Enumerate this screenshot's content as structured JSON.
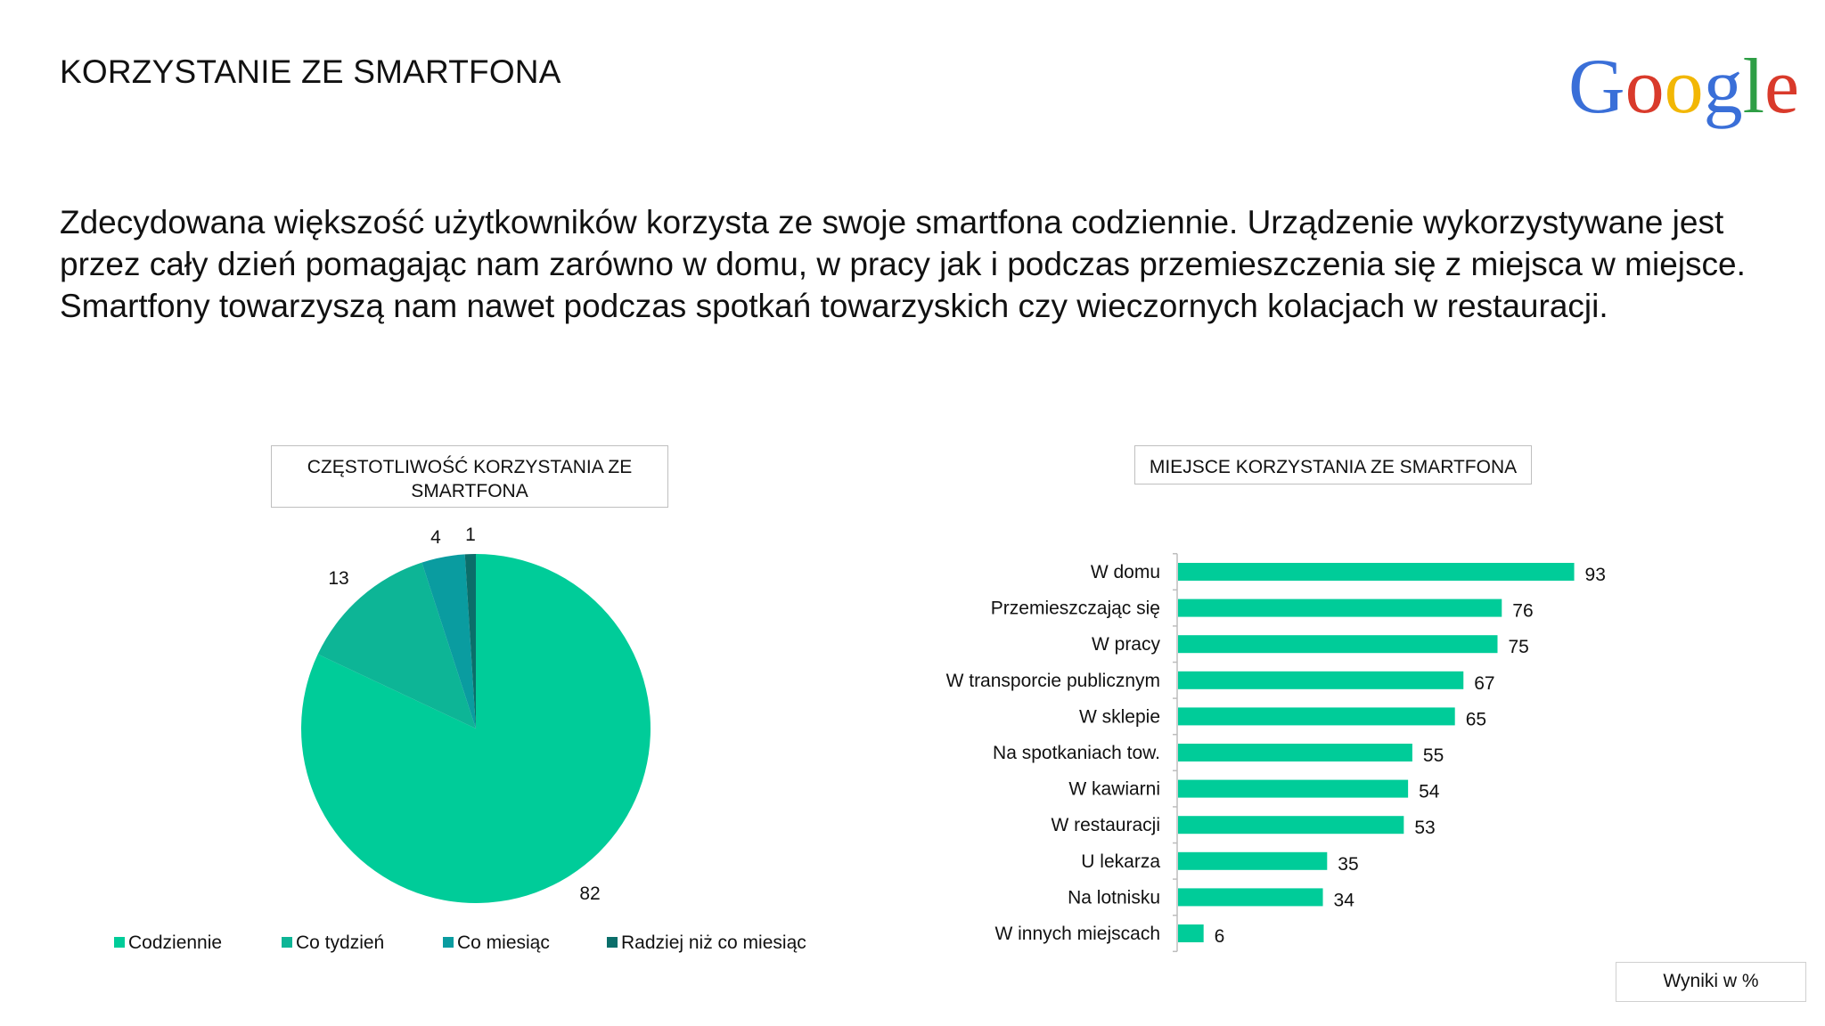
{
  "title": "KORZYSTANIE ZE SMARTFONA",
  "logo_text": "Google",
  "intro": "Zdecydowana większość użytkowników korzysta ze swoje smartfona codziennie. Urządzenie wykorzystywane jest przez cały dzień pomagając nam zarówno w domu, w pracy jak i podczas przemieszczenia się z miejsca w miejsce. Smartfony towarzyszą nam nawet podczas spotkań towarzyskich czy wieczornych kolacjach w restauracji.",
  "footnote": "Wyniki w %",
  "colors": {
    "codziennie": "#00cc99",
    "co_tydzien": "#0db596",
    "co_miesiac": "#0a9ca0",
    "rzadziej": "#0b6e6a",
    "bar": "#00cc99"
  },
  "chart_data": [
    {
      "type": "pie",
      "title": "CZĘSTOTLIWOŚĆ KORZYSTANIA ZE SMARTFONA",
      "categories": [
        "Codziennie",
        "Co tydzień",
        "Co miesiąc",
        "Radziej niż co miesiąc"
      ],
      "values": [
        82,
        13,
        4,
        1
      ],
      "colors": [
        "#00cc99",
        "#0db596",
        "#0a9ca0",
        "#0b6e6a"
      ],
      "legend": "bottom"
    },
    {
      "type": "bar",
      "orientation": "horizontal",
      "title": "MIEJSCE  KORZYSTANIA ZE SMARTFONA",
      "categories": [
        "W domu",
        "Przemieszczając się",
        "W pracy",
        "W transporcie publicznym",
        "W sklepie",
        "Na spotkaniach tow.",
        "W kawiarni",
        "W restauracji",
        "U lekarza",
        "Na lotnisku",
        "W innych miejscach"
      ],
      "values": [
        93,
        76,
        75,
        67,
        65,
        55,
        54,
        53,
        35,
        34,
        6
      ],
      "color": "#00cc99",
      "xlim": [
        0,
        100
      ]
    }
  ]
}
